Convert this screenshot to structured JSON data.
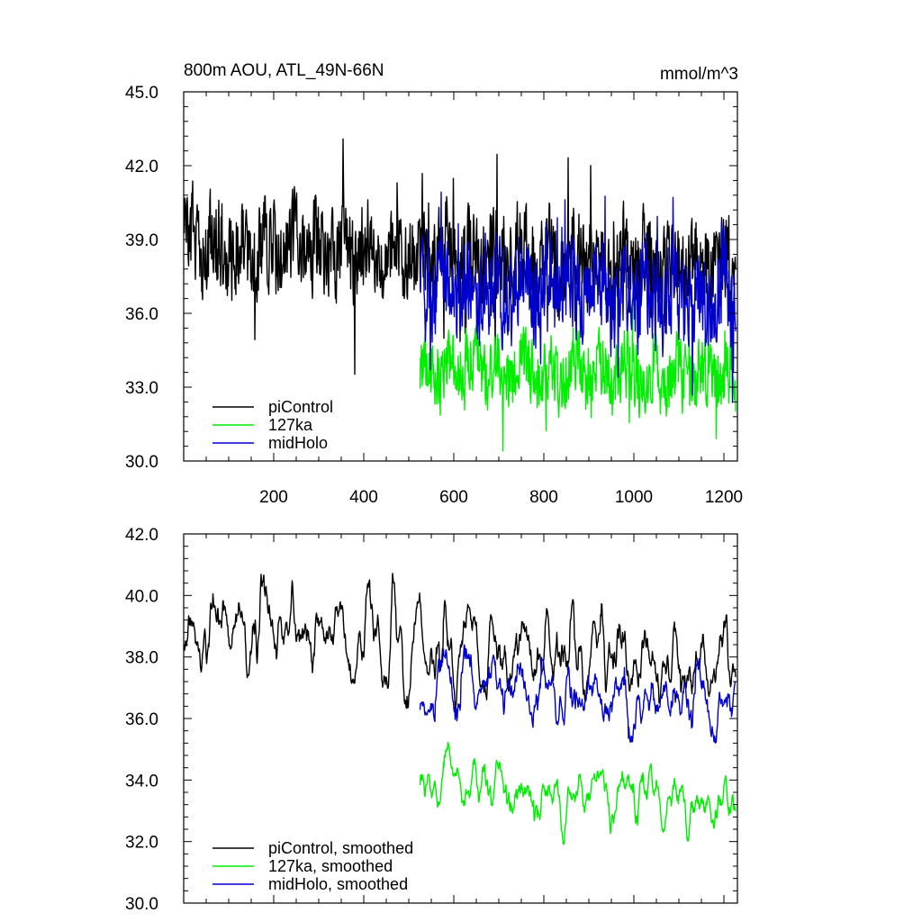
{
  "chart_data": [
    {
      "type": "line",
      "title": "800m AOU, ATL_49N-66N",
      "units": "mmol/m^3",
      "xlim": [
        0,
        1230
      ],
      "ylim": [
        30,
        45
      ],
      "xticks": [
        200,
        400,
        600,
        800,
        1000,
        1200
      ],
      "xtick_labels": [
        "200",
        "400",
        "600",
        "800",
        "1000",
        "1200"
      ],
      "yticks": [
        30,
        33,
        36,
        39,
        42,
        45
      ],
      "ytick_labels": [
        "30.0",
        "33.0",
        "36.0",
        "39.0",
        "42.0",
        "45.0"
      ],
      "legend_position": "bottom-left",
      "series": [
        {
          "name": "piControl",
          "color": "#000000",
          "x_start": 1,
          "x_end": 1226,
          "mean": 38.8,
          "trend_end": 37.8,
          "amplitude": 1.6,
          "noise": 1.2,
          "smoothing": 0
        },
        {
          "name": "127ka",
          "color": "#00ee00",
          "x_start": 525,
          "x_end": 1226,
          "mean": 33.8,
          "trend_end": 33.4,
          "amplitude": 1.2,
          "noise": 0.9,
          "smoothing": 0
        },
        {
          "name": "midHolo",
          "color": "#0000cc",
          "x_start": 525,
          "x_end": 1226,
          "mean": 37.0,
          "trend_end": 36.6,
          "amplitude": 1.6,
          "noise": 1.2,
          "smoothing": 0
        }
      ]
    },
    {
      "type": "line",
      "title": "",
      "units": "",
      "xlim": [
        0,
        1230
      ],
      "ylim": [
        30,
        42
      ],
      "xticks": [
        200,
        400,
        600,
        800,
        1000,
        1200
      ],
      "xtick_labels": [],
      "yticks": [
        30,
        32,
        34,
        36,
        38,
        40,
        42
      ],
      "ytick_labels": [
        "30.0",
        "32.0",
        "34.0",
        "36.0",
        "38.0",
        "40.0",
        "42.0"
      ],
      "legend_position": "bottom-left",
      "series": [
        {
          "name": "piControl, smoothed",
          "color": "#000000",
          "x_start": 1,
          "x_end": 1226,
          "mean": 38.8,
          "trend_end": 38.0,
          "amplitude": 1.2,
          "noise": 0.8,
          "smoothing": 4
        },
        {
          "name": "127ka, smoothed",
          "color": "#00ee00",
          "x_start": 525,
          "x_end": 1226,
          "mean": 33.8,
          "trend_end": 33.3,
          "amplitude": 0.9,
          "noise": 0.6,
          "smoothing": 4
        },
        {
          "name": "midHolo, smoothed",
          "color": "#0000cc",
          "x_start": 525,
          "x_end": 1226,
          "mean": 37.0,
          "trend_end": 36.5,
          "amplitude": 1.2,
          "noise": 0.8,
          "smoothing": 4
        }
      ]
    }
  ]
}
